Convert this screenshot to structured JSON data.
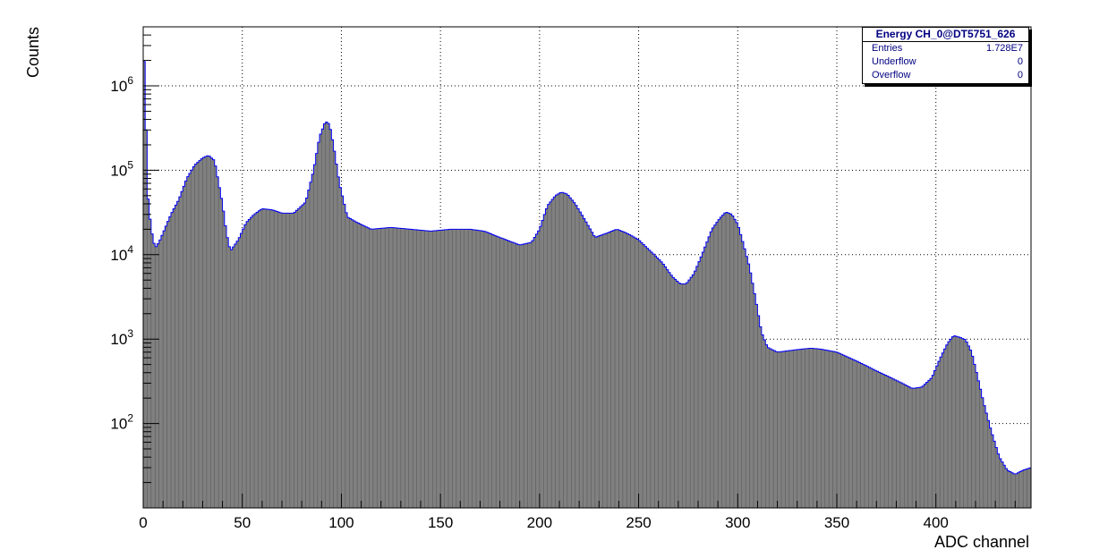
{
  "chart_data": {
    "type": "area",
    "histogram_name": "Energy CH_0@DT5751_626",
    "title": "",
    "xlabel": "ADC channel",
    "ylabel": "Counts",
    "xlim": [
      0,
      448
    ],
    "ylim": [
      10,
      5000000
    ],
    "y_log_scale": true,
    "grid": true,
    "x_ticks": [
      "0",
      "50",
      "100",
      "150",
      "200",
      "250",
      "300",
      "350",
      "400"
    ],
    "x_tick_values": [
      0,
      50,
      100,
      150,
      200,
      250,
      300,
      350,
      400
    ],
    "y_tick_labels": [
      {
        "base": "10",
        "exp": "2",
        "value": 100
      },
      {
        "base": "10",
        "exp": "3",
        "value": 1000
      },
      {
        "base": "10",
        "exp": "4",
        "value": 10000
      },
      {
        "base": "10",
        "exp": "5",
        "value": 100000
      },
      {
        "base": "10",
        "exp": "6",
        "value": 1000000
      }
    ],
    "stats": {
      "title": "Energy CH_0@DT5751_626",
      "rows": [
        {
          "label": "Entries",
          "value": "1.728E7"
        },
        {
          "label": "Underflow",
          "value": "0"
        },
        {
          "label": "Overflow",
          "value": "0"
        }
      ],
      "placement": "top-right"
    },
    "colors": {
      "line": "#0000ff",
      "fill": "#808080",
      "text": "#000080"
    },
    "series": [
      {
        "x": [
          0,
          1,
          2,
          4,
          6,
          8,
          10,
          14,
          18,
          22,
          26,
          30,
          33,
          36,
          40,
          42,
          44,
          48,
          52,
          56,
          60,
          65,
          70,
          76,
          82,
          86,
          89,
          92,
          94,
          96,
          99,
          103,
          108,
          115,
          125,
          135,
          145,
          155,
          165,
          172,
          180,
          190,
          196,
          200,
          204,
          208,
          211,
          214,
          218,
          222,
          228,
          234,
          239,
          244,
          250,
          256,
          262,
          267,
          271,
          274,
          278,
          282,
          287,
          291,
          294,
          297,
          300,
          303,
          306,
          309,
          312,
          315,
          320,
          330,
          337,
          342,
          350,
          360,
          370,
          376,
          383,
          388,
          393,
          398,
          402,
          406,
          409,
          412,
          415,
          418,
          421,
          424,
          428,
          432,
          436,
          440,
          444,
          448
        ],
        "values": [
          2500000,
          1500000,
          60000,
          20000,
          12000,
          14000,
          18000,
          30000,
          45000,
          80000,
          115000,
          140000,
          150000,
          130000,
          40000,
          18000,
          11000,
          15000,
          24000,
          30000,
          35000,
          34000,
          31000,
          31000,
          42000,
          100000,
          250000,
          380000,
          350000,
          200000,
          70000,
          28000,
          24000,
          20000,
          21000,
          20000,
          19000,
          20000,
          20000,
          19000,
          16000,
          13000,
          14000,
          20000,
          38000,
          50000,
          55000,
          52000,
          40000,
          28000,
          16000,
          18000,
          20000,
          18000,
          15000,
          11000,
          8000,
          5500,
          4500,
          4500,
          6000,
          10000,
          20000,
          27000,
          32000,
          30000,
          23000,
          13000,
          7000,
          3000,
          1200,
          800,
          700,
          750,
          780,
          760,
          700,
          550,
          420,
          360,
          300,
          260,
          270,
          350,
          580,
          900,
          1100,
          1050,
          980,
          700,
          360,
          180,
          80,
          40,
          28,
          25,
          28,
          30
        ]
      }
    ]
  }
}
